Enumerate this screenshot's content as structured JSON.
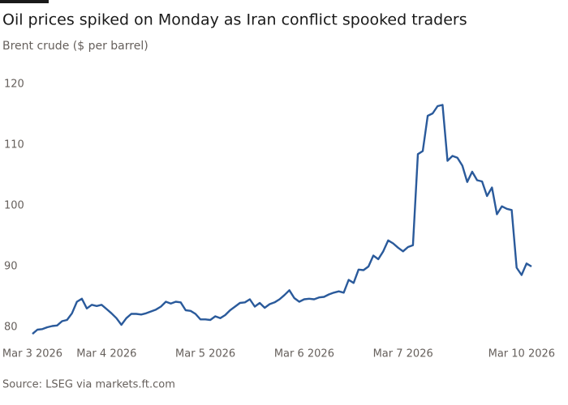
{
  "chart_data": {
    "type": "line",
    "title": "Oil prices spiked on Monday as Iran conflict spooked traders",
    "subtitle": "Brent crude ($ per barrel)",
    "source": "Source: LSEG via markets.ft.com",
    "categories": [
      "Mar 3 2026",
      null,
      null,
      null,
      null,
      null,
      null,
      null,
      null,
      null,
      null,
      null,
      null,
      null,
      null,
      "Mar 4 2026",
      null,
      null,
      null,
      null,
      null,
      null,
      null,
      null,
      null,
      null,
      null,
      null,
      null,
      null,
      null,
      null,
      null,
      null,
      null,
      "Mar 5 2026",
      null,
      null,
      null,
      null,
      null,
      null,
      null,
      null,
      null,
      null,
      null,
      null,
      null,
      null,
      null,
      null,
      null,
      null,
      null,
      "Mar 6 2026",
      null,
      null,
      null,
      null,
      null,
      null,
      null,
      null,
      null,
      null,
      null,
      null,
      null,
      null,
      null,
      null,
      null,
      null,
      null,
      "Mar 7 2026",
      null,
      null,
      null,
      null,
      null,
      null,
      null,
      null,
      null,
      null,
      null,
      null,
      null,
      null,
      null,
      null,
      null,
      null,
      null,
      null,
      null,
      null,
      null,
      "Mar 10 2026",
      null,
      null
    ],
    "series": [
      {
        "name": "Brent crude",
        "color": "#2a5a9b",
        "values": [
          78.9,
          79.6,
          79.7,
          80.0,
          80.2,
          80.3,
          81.0,
          81.2,
          82.3,
          84.2,
          84.7,
          83.1,
          83.7,
          83.5,
          83.7,
          83.0,
          82.3,
          81.5,
          80.4,
          81.5,
          82.2,
          82.2,
          82.1,
          82.3,
          82.6,
          82.9,
          83.4,
          84.2,
          83.9,
          84.2,
          84.1,
          82.8,
          82.7,
          82.2,
          81.3,
          81.3,
          81.2,
          81.8,
          81.5,
          82.0,
          82.8,
          83.4,
          84.0,
          84.1,
          84.6,
          83.4,
          84.0,
          83.2,
          83.8,
          84.1,
          84.6,
          85.3,
          86.1,
          84.8,
          84.2,
          84.6,
          84.7,
          84.6,
          84.9,
          85.0,
          85.4,
          85.7,
          85.9,
          85.7,
          87.8,
          87.3,
          89.5,
          89.4,
          90.0,
          91.8,
          91.2,
          92.5,
          94.3,
          93.8,
          93.1,
          92.5,
          93.2,
          93.5,
          108.5,
          109.0,
          114.8,
          115.2,
          116.4,
          116.6,
          107.4,
          108.2,
          107.9,
          106.6,
          103.9,
          105.6,
          104.2,
          104.0,
          101.6,
          103.0,
          98.6,
          99.9,
          99.5,
          99.3,
          89.8,
          88.6,
          90.5,
          90.0
        ]
      }
    ],
    "ylim": [
      78,
      120
    ],
    "yticks": [
      80,
      90,
      100,
      110,
      120
    ],
    "grid": false
  }
}
